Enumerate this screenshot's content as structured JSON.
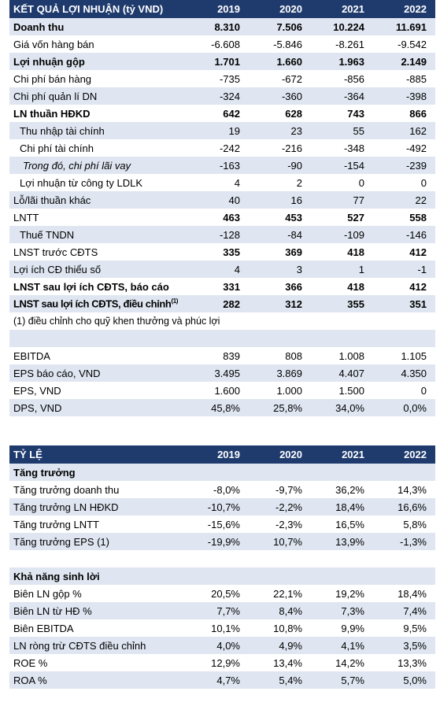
{
  "table1": {
    "header": {
      "title": "KẾT QUẢ LỢI NHUẬN (tỷ VND)",
      "years": [
        "2019",
        "2020",
        "2021",
        "2022"
      ]
    },
    "rows": [
      {
        "label": "Doanh thu",
        "values": [
          "8.310",
          "7.506",
          "10.224",
          "11.691"
        ]
      },
      {
        "label": "Giá vốn hàng bán",
        "values": [
          "-6.608",
          "-5.846",
          "-8.261",
          "-9.542"
        ]
      },
      {
        "label": "Lợi nhuận gộp",
        "values": [
          "1.701",
          "1.660",
          "1.963",
          "2.149"
        ]
      },
      {
        "label": "Chi phí bán hàng",
        "values": [
          "-735",
          "-672",
          "-856",
          "-885"
        ]
      },
      {
        "label": "Chi phí quản lí DN",
        "values": [
          "-324",
          "-360",
          "-364",
          "-398"
        ]
      },
      {
        "label": "LN thuần HĐKD",
        "values": [
          "642",
          "628",
          "743",
          "866"
        ]
      },
      {
        "label": "Thu nhập tài chính",
        "values": [
          "19",
          "23",
          "55",
          "162"
        ]
      },
      {
        "label": "Chi phí tài chính",
        "values": [
          "-242",
          "-216",
          "-348",
          "-492"
        ]
      },
      {
        "label": "Trong đó, chi phí lãi vay",
        "values": [
          "-163",
          "-90",
          "-154",
          "-239"
        ]
      },
      {
        "label": "Lợi nhuận từ công ty LDLK",
        "values": [
          "4",
          "2",
          "0",
          "0"
        ]
      },
      {
        "label": "Lỗ/lãi thuần khác",
        "values": [
          "40",
          "16",
          "77",
          "22"
        ]
      },
      {
        "label": "LNTT",
        "values": [
          "463",
          "453",
          "527",
          "558"
        ]
      },
      {
        "label": "Thuế TNDN",
        "values": [
          "-128",
          "-84",
          "-109",
          "-146"
        ]
      },
      {
        "label": "LNST trước CĐTS",
        "values": [
          "335",
          "369",
          "418",
          "412"
        ]
      },
      {
        "label": "Lợi ích CĐ thiểu số",
        "values": [
          "4",
          "3",
          "1",
          "-1"
        ]
      },
      {
        "label": "LNST sau lợi ích CĐTS, báo cáo",
        "values": [
          "331",
          "366",
          "418",
          "412"
        ]
      },
      {
        "label": "LNST sau lợi ích CĐTS, điều chỉnh",
        "sup": "(1)",
        "values": [
          "282",
          "312",
          "355",
          "351"
        ]
      }
    ],
    "footnote": "(1) điều chỉnh cho quỹ khen thưởng và phúc lợi",
    "rows2": [
      {
        "label": "EBITDA",
        "values": [
          "839",
          "808",
          "1.008",
          "1.105"
        ]
      },
      {
        "label": "EPS báo cáo, VND",
        "values": [
          "3.495",
          "3.869",
          "4.407",
          "4.350"
        ]
      },
      {
        "label": "EPS, VND",
        "values": [
          "1.600",
          "1.000",
          "1.500",
          "0"
        ]
      },
      {
        "label": "DPS, VND",
        "values": [
          "45,8%",
          "25,8%",
          "34,0%",
          "0,0%"
        ]
      }
    ]
  },
  "table2": {
    "header": {
      "title": "TỶ LỆ",
      "years": [
        "2019",
        "2020",
        "2021",
        "2022"
      ]
    },
    "growth_title": "Tăng trưởng",
    "growth": [
      {
        "label": "Tăng trưởng doanh thu",
        "values": [
          "-8,0%",
          "-9,7%",
          "36,2%",
          "14,3%"
        ]
      },
      {
        "label": "Tăng trưởng LN HĐKD",
        "values": [
          "-10,7%",
          "-2,2%",
          "18,4%",
          "16,6%"
        ]
      },
      {
        "label": "Tăng trưởng LNTT",
        "values": [
          "-15,6%",
          "-2,3%",
          "16,5%",
          "5,8%"
        ]
      },
      {
        "label": "Tăng trưởng EPS (1)",
        "values": [
          "-19,9%",
          "10,7%",
          "13,9%",
          "-1,3%"
        ]
      }
    ],
    "profit_title": "Khả năng sinh lời",
    "profit": [
      {
        "label": "Biên LN gộp %",
        "values": [
          "20,5%",
          "22,1%",
          "19,2%",
          "18,4%"
        ]
      },
      {
        "label": "Biên LN từ HĐ %",
        "values": [
          "7,7%",
          "8,4%",
          "7,3%",
          "7,4%"
        ]
      },
      {
        "label": "Biên EBITDA",
        "values": [
          "10,1%",
          "10,8%",
          "9,9%",
          "9,5%"
        ]
      },
      {
        "label": "LN ròng trừ CĐTS điều chỉnh",
        "values": [
          "4,0%",
          "4,9%",
          "4,1%",
          "3,5%"
        ]
      },
      {
        "label": "ROE %",
        "values": [
          "12,9%",
          "13,4%",
          "14,2%",
          "13,3%"
        ]
      },
      {
        "label": "ROA %",
        "values": [
          "4,7%",
          "5,4%",
          "5,7%",
          "5,0%"
        ]
      }
    ]
  }
}
